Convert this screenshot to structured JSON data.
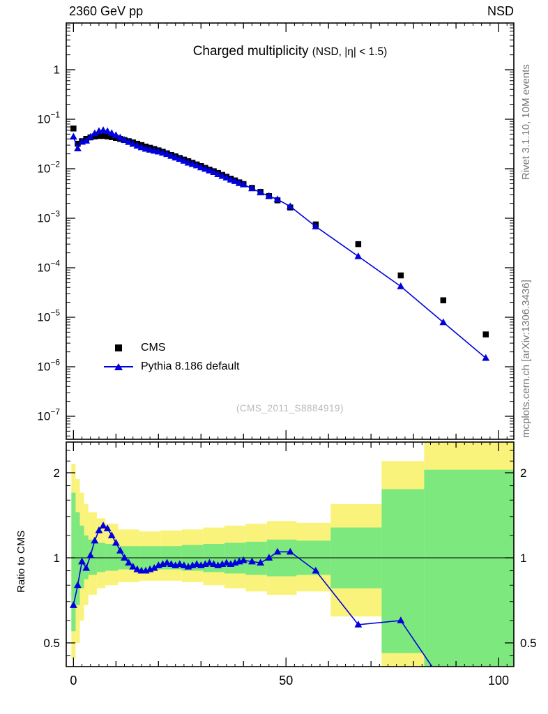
{
  "header": {
    "left": "2360 GeV pp",
    "right": "NSD"
  },
  "title": {
    "main": "Charged multiplicity",
    "sub": "(NSD, |η| < 1.5)"
  },
  "watermark": "(CMS_2011_S8884919)",
  "side_notes": {
    "top": "Rivet 3.1.10,  10M events",
    "bottom": "mcplots.cern.ch [arXiv:1306.3436]"
  },
  "ratio_ylabel": "Ratio to CMS",
  "legend": [
    {
      "label": "CMS",
      "marker": "square",
      "color": "#000000"
    },
    {
      "label": "Pythia 8.186 default",
      "marker": "triangle-line",
      "color": "#0000dd"
    }
  ],
  "colors": {
    "data": "#000000",
    "mc": "#0000dd",
    "band_outer": "#faf37b",
    "band_inner": "#7de87d",
    "frame": "#000000",
    "watermark": "#b9b9b9",
    "side_note": "#777777"
  },
  "chart_data": {
    "type": "line",
    "title": "Charged multiplicity (NSD, |η| < 1.5)",
    "xlabel": "",
    "ylabel": "",
    "x_range": [
      -1.7,
      103.6
    ],
    "x_ticks_labeled": [
      0,
      50,
      100
    ],
    "x_tick_minor_step": 2,
    "x_tick_mid_step": 10,
    "main_panel": {
      "ylog": true,
      "y_tick_exponents": [
        0,
        -1,
        -2,
        -3,
        -4,
        -5,
        -6,
        -7
      ],
      "y_range": [
        3.5e-08,
        8.8
      ]
    },
    "ratio_panel": {
      "ylog": true,
      "y_ticks": [
        0.5,
        1,
        2
      ],
      "y_minor_ticks": [
        0.45,
        0.6,
        0.7,
        0.8,
        0.9,
        1.2,
        1.4,
        1.6,
        1.8,
        2.2,
        2.4
      ],
      "y_range": [
        0.41,
        2.57
      ],
      "reference_line": 1
    },
    "series": [
      {
        "name": "CMS",
        "type": "scatter",
        "marker": "square",
        "color": "#000000",
        "x": [
          0,
          1,
          2,
          3,
          4,
          5,
          6,
          7,
          8,
          9,
          10,
          11,
          12,
          13,
          14,
          15,
          16,
          17,
          18,
          19,
          20,
          21,
          22,
          23,
          24,
          25,
          26,
          27,
          28,
          29,
          30,
          31,
          32,
          33,
          34,
          35,
          36,
          37,
          38,
          39,
          40,
          42,
          44,
          46,
          48,
          51,
          57,
          67,
          77,
          87,
          97
        ],
        "y": [
          0.065,
          0.032,
          0.036,
          0.04,
          0.043,
          0.045,
          0.046,
          0.046,
          0.045,
          0.0435,
          0.042,
          0.04,
          0.038,
          0.036,
          0.034,
          0.032,
          0.03,
          0.028,
          0.0265,
          0.025,
          0.0235,
          0.022,
          0.0205,
          0.019,
          0.0178,
          0.0165,
          0.0153,
          0.0142,
          0.0132,
          0.0122,
          0.0113,
          0.0104,
          0.0096,
          0.0089,
          0.0082,
          0.0075,
          0.0069,
          0.0063,
          0.0058,
          0.0053,
          0.0049,
          0.0041,
          0.0034,
          0.0028,
          0.0023,
          0.00165,
          0.00075,
          0.0003,
          7e-05,
          2.2e-05,
          4.5e-06
        ]
      },
      {
        "name": "Pythia 8.186 default",
        "type": "line+marker",
        "marker": "triangle",
        "color": "#0000dd",
        "x": [
          0,
          1,
          2,
          3,
          4,
          5,
          6,
          7,
          8,
          9,
          10,
          11,
          12,
          13,
          14,
          15,
          16,
          17,
          18,
          19,
          20,
          21,
          22,
          23,
          24,
          25,
          26,
          27,
          28,
          29,
          30,
          31,
          32,
          33,
          34,
          35,
          36,
          37,
          38,
          39,
          40,
          42,
          44,
          46,
          48,
          51,
          57,
          67,
          77,
          87,
          97
        ],
        "y": [
          0.0442,
          0.0256,
          0.0349,
          0.0368,
          0.0439,
          0.0518,
          0.0575,
          0.0598,
          0.0572,
          0.0522,
          0.0475,
          0.0424,
          0.038,
          0.0346,
          0.0316,
          0.0291,
          0.027,
          0.0252,
          0.0241,
          0.023,
          0.0221,
          0.0209,
          0.0197,
          0.0181,
          0.0167,
          0.0157,
          0.0144,
          0.0132,
          0.0124,
          0.0116,
          0.0106,
          0.0099,
          0.0092,
          0.0085,
          0.0077,
          0.0071,
          0.0066,
          0.006,
          0.0056,
          0.0051,
          0.0048,
          0.004,
          0.0033,
          0.0028,
          0.0024,
          0.00173,
          0.00068,
          0.00017,
          4.2e-05,
          7.9e-06,
          1.5e-06
        ]
      }
    ],
    "ratio": {
      "name": "Pythia 8.186 default / CMS",
      "x": [
        0,
        1,
        2,
        3,
        4,
        5,
        6,
        7,
        8,
        9,
        10,
        11,
        12,
        13,
        14,
        15,
        16,
        17,
        18,
        19,
        20,
        21,
        22,
        23,
        24,
        25,
        26,
        27,
        28,
        29,
        30,
        31,
        32,
        33,
        34,
        35,
        36,
        37,
        38,
        39,
        40,
        42,
        44,
        46,
        48,
        51,
        57,
        67,
        77,
        87,
        97
      ],
      "values": [
        0.68,
        0.8,
        0.97,
        0.92,
        1.02,
        1.15,
        1.25,
        1.3,
        1.27,
        1.2,
        1.13,
        1.06,
        1.0,
        0.96,
        0.93,
        0.91,
        0.9,
        0.9,
        0.91,
        0.92,
        0.94,
        0.95,
        0.96,
        0.95,
        0.94,
        0.95,
        0.94,
        0.93,
        0.94,
        0.95,
        0.94,
        0.95,
        0.96,
        0.95,
        0.94,
        0.95,
        0.96,
        0.95,
        0.96,
        0.97,
        0.98,
        0.97,
        0.96,
        1.0,
        1.05,
        1.05,
        0.9,
        0.58,
        0.6,
        0.36,
        0.33
      ]
    },
    "bands": {
      "outer_color": "#faf37b",
      "inner_color": "#7de87d",
      "outer": [
        [
          -0.5,
          0.5,
          0.44,
          2.15
        ],
        [
          0.5,
          1.5,
          0.5,
          1.9
        ],
        [
          1.5,
          2.5,
          0.6,
          1.7
        ],
        [
          2.5,
          3.5,
          0.68,
          1.55
        ],
        [
          3.5,
          5.5,
          0.74,
          1.45
        ],
        [
          5.5,
          7.5,
          0.78,
          1.38
        ],
        [
          7.5,
          10.5,
          0.8,
          1.32
        ],
        [
          10.5,
          15.5,
          0.82,
          1.26
        ],
        [
          15.5,
          20.5,
          0.83,
          1.24
        ],
        [
          20.5,
          25.5,
          0.83,
          1.25
        ],
        [
          25.5,
          30.5,
          0.82,
          1.26
        ],
        [
          30.5,
          35.5,
          0.8,
          1.28
        ],
        [
          35.5,
          40.5,
          0.78,
          1.3
        ],
        [
          40.5,
          45.5,
          0.76,
          1.32
        ],
        [
          45.5,
          52.5,
          0.74,
          1.35
        ],
        [
          52.5,
          60.5,
          0.76,
          1.33
        ],
        [
          60.5,
          72.5,
          0.62,
          1.55
        ],
        [
          72.5,
          82.5,
          0.4,
          2.2
        ],
        [
          82.5,
          103.6,
          0.35,
          2.6
        ]
      ],
      "inner": [
        [
          -0.5,
          0.5,
          0.55,
          1.7
        ],
        [
          0.5,
          1.5,
          0.68,
          1.45
        ],
        [
          1.5,
          2.5,
          0.78,
          1.3
        ],
        [
          2.5,
          3.5,
          0.84,
          1.2
        ],
        [
          3.5,
          5.5,
          0.87,
          1.16
        ],
        [
          5.5,
          7.5,
          0.89,
          1.13
        ],
        [
          7.5,
          10.5,
          0.9,
          1.12
        ],
        [
          10.5,
          15.5,
          0.91,
          1.1
        ],
        [
          15.5,
          20.5,
          0.91,
          1.1
        ],
        [
          20.5,
          25.5,
          0.91,
          1.1
        ],
        [
          25.5,
          30.5,
          0.9,
          1.11
        ],
        [
          30.5,
          35.5,
          0.89,
          1.12
        ],
        [
          35.5,
          40.5,
          0.88,
          1.13
        ],
        [
          40.5,
          45.5,
          0.87,
          1.14
        ],
        [
          45.5,
          52.5,
          0.86,
          1.16
        ],
        [
          52.5,
          60.5,
          0.87,
          1.15
        ],
        [
          60.5,
          72.5,
          0.78,
          1.28
        ],
        [
          72.5,
          82.5,
          0.46,
          1.75
        ],
        [
          82.5,
          103.6,
          0.4,
          2.05
        ]
      ]
    }
  }
}
